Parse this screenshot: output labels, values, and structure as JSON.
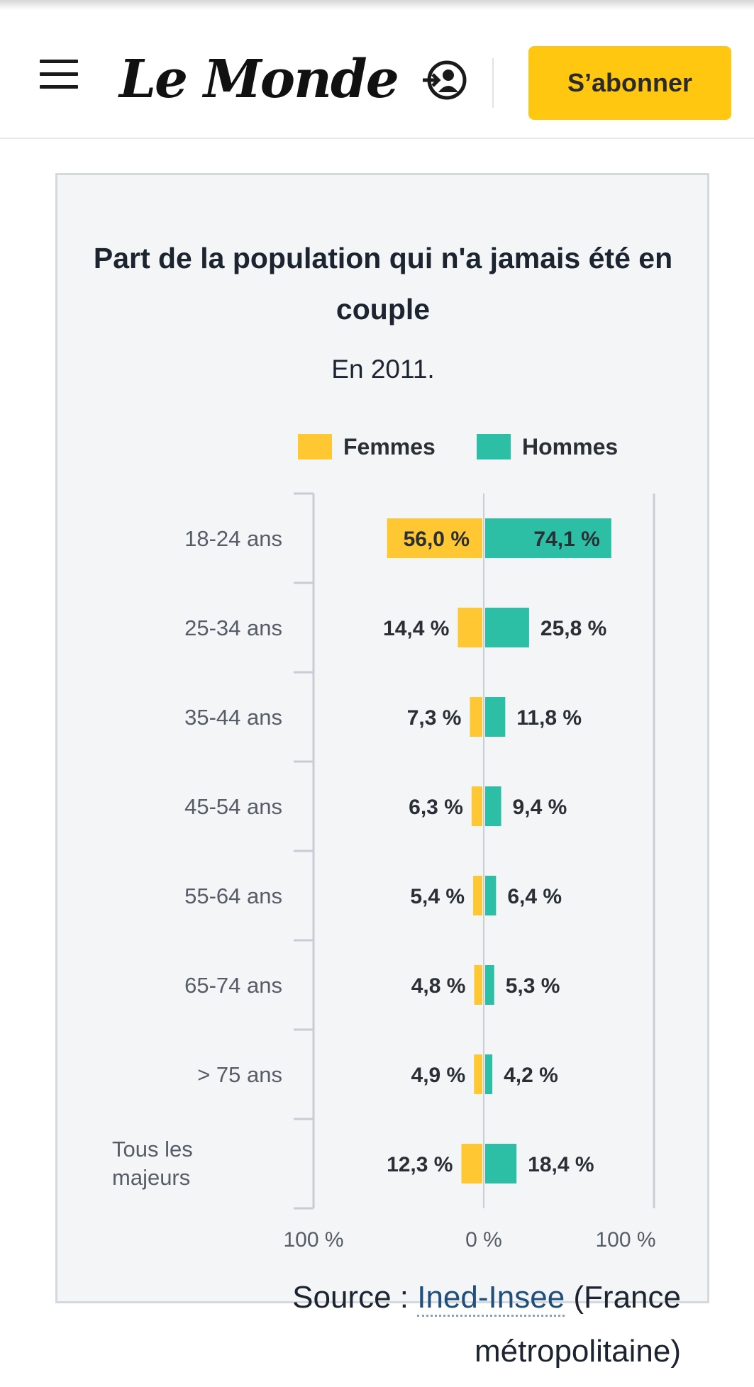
{
  "header": {
    "logo": "Le Monde",
    "subscribe_label": "S’abonner"
  },
  "colors": {
    "femmes": "#ffc832",
    "hommes": "#2cbfa6",
    "accent": "#ffc70f"
  },
  "chart_data": {
    "type": "bar",
    "orientation": "horizontal-diverging",
    "title": "Part de la population qui n'a jamais été en couple",
    "subtitle": "En 2011.",
    "categories": [
      "18-24 ans",
      "25-34 ans",
      "35-44 ans",
      "45-54 ans",
      "55-64 ans",
      "65-74 ans",
      "> 75 ans",
      "Tous les majeurs"
    ],
    "series": [
      {
        "name": "Femmes",
        "values": [
          56.0,
          14.4,
          7.3,
          6.3,
          5.4,
          4.8,
          4.9,
          12.3
        ],
        "labels": [
          "56,0 %",
          "14,4 %",
          "7,3 %",
          "6,3 %",
          "5,4 %",
          "4,8 %",
          "4,9 %",
          "12,3 %"
        ]
      },
      {
        "name": "Hommes",
        "values": [
          74.1,
          25.8,
          11.8,
          9.4,
          6.4,
          5.3,
          4.2,
          18.4
        ],
        "labels": [
          "74,1 %",
          "25,8 %",
          "11,8 %",
          "9,4 %",
          "6,4 %",
          "5,3 %",
          "4,2 %",
          "18,4 %"
        ]
      }
    ],
    "x_ticks": [
      "100 %",
      "0 %",
      "100 %"
    ],
    "xlim": [
      -100,
      100
    ],
    "legend_position": "top",
    "grid": false
  },
  "source": {
    "prefix": "Source : ",
    "link": "Ined-Insee",
    "suffix_line1": " (France",
    "line2": "métropolitaine)"
  }
}
